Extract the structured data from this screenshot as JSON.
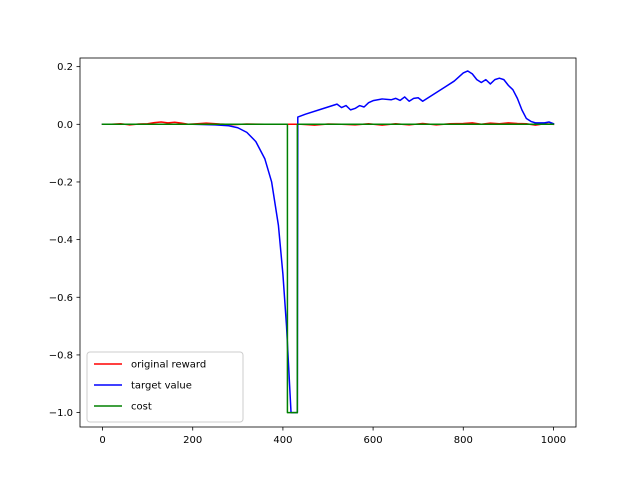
{
  "chart_data": {
    "type": "line",
    "title": "",
    "xlabel": "",
    "ylabel": "",
    "xlim": [
      -50,
      1050
    ],
    "ylim": [
      -1.05,
      0.23
    ],
    "x_ticks": [
      0,
      200,
      400,
      600,
      800,
      1000
    ],
    "x_tick_labels": [
      "0",
      "200",
      "400",
      "600",
      "800",
      "1000"
    ],
    "y_ticks": [
      0.2,
      0.0,
      -0.2,
      -0.4,
      -0.6,
      -0.8,
      -1.0
    ],
    "y_tick_labels": [
      "0.2",
      "0.0",
      "−0.2",
      "−0.4",
      "−0.6",
      "−0.8",
      "−1.0"
    ],
    "grid": false,
    "legend": {
      "position": "lower-left"
    },
    "series": [
      {
        "name": "original reward",
        "color": "#ff0000",
        "x": [
          0,
          20,
          40,
          60,
          80,
          100,
          115,
          130,
          145,
          160,
          175,
          190,
          210,
          230,
          260,
          290,
          320,
          360,
          400,
          420,
          440,
          470,
          500,
          530,
          560,
          590,
          620,
          650,
          680,
          710,
          740,
          770,
          800,
          820,
          840,
          860,
          880,
          900,
          920,
          940,
          960,
          980,
          1000
        ],
        "y": [
          0.0,
          0.0,
          0.002,
          -0.002,
          0.001,
          0.002,
          0.006,
          0.008,
          0.005,
          0.007,
          0.004,
          0.0,
          0.002,
          0.004,
          0.001,
          -0.001,
          0.001,
          0.0,
          0.0,
          0.0,
          0.0,
          -0.003,
          0.001,
          0.0,
          -0.002,
          0.002,
          -0.003,
          0.002,
          -0.002,
          0.003,
          -0.002,
          0.002,
          0.003,
          0.005,
          0.0,
          0.004,
          0.002,
          0.005,
          0.003,
          0.002,
          -0.003,
          0.002,
          0.0
        ]
      },
      {
        "name": "target value",
        "color": "#0000ff",
        "x": [
          0,
          100,
          200,
          250,
          280,
          300,
          320,
          340,
          360,
          375,
          390,
          400,
          408,
          413,
          418,
          423,
          428,
          432,
          433,
          450,
          480,
          500,
          520,
          530,
          540,
          550,
          560,
          570,
          580,
          590,
          600,
          620,
          640,
          650,
          660,
          670,
          680,
          690,
          700,
          710,
          720,
          740,
          760,
          780,
          800,
          810,
          820,
          830,
          840,
          850,
          860,
          870,
          880,
          890,
          900,
          910,
          920,
          930,
          940,
          950,
          960,
          980,
          990,
          1000
        ],
        "y": [
          0.0,
          0.0,
          0.0,
          -0.002,
          -0.005,
          -0.012,
          -0.028,
          -0.06,
          -0.12,
          -0.2,
          -0.35,
          -0.52,
          -0.7,
          -0.85,
          -1.0,
          -1.0,
          -1.0,
          -1.0,
          0.025,
          0.035,
          0.05,
          0.06,
          0.07,
          0.058,
          0.065,
          0.05,
          0.055,
          0.065,
          0.06,
          0.075,
          0.082,
          0.088,
          0.085,
          0.09,
          0.083,
          0.095,
          0.08,
          0.09,
          0.092,
          0.08,
          0.09,
          0.11,
          0.13,
          0.15,
          0.178,
          0.185,
          0.175,
          0.155,
          0.145,
          0.155,
          0.14,
          0.155,
          0.16,
          0.155,
          0.135,
          0.12,
          0.09,
          0.05,
          0.02,
          0.01,
          0.005,
          0.005,
          0.008,
          0.002
        ]
      },
      {
        "name": "cost",
        "color": "#008000",
        "x": [
          0,
          410,
          410,
          432,
          432,
          1000
        ],
        "y": [
          0.0,
          0.0,
          -1.0,
          -1.0,
          0.0,
          0.0
        ]
      }
    ]
  }
}
